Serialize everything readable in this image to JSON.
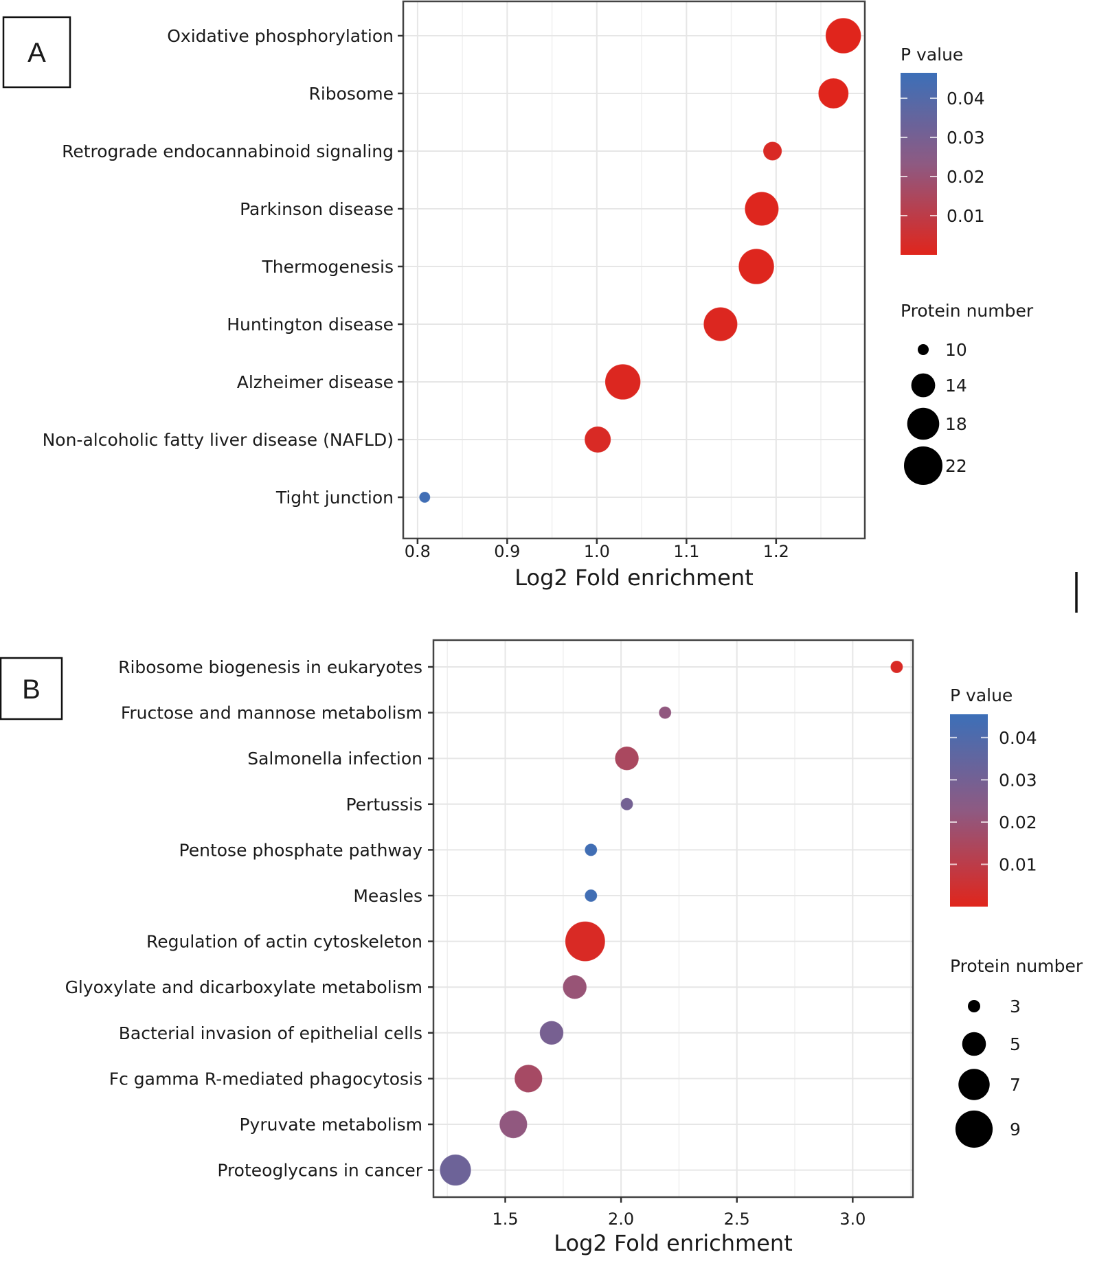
{
  "chart_data": [
    {
      "panel": "A",
      "type": "scatter",
      "subtype": "bubble",
      "xlabel": "Log2 Fold enrichment",
      "ylabel": "",
      "xlim": [
        0.784,
        1.299
      ],
      "xticks": [
        0.8,
        0.9,
        1.0,
        1.1,
        1.2
      ],
      "xtick_labels": [
        "0.8",
        "0.9",
        "1.0",
        "1.1",
        "1.2"
      ],
      "grid": true,
      "categories": [
        "Oxidative phosphorylation",
        "Ribosome",
        "Retrograde endocannabinoid signaling",
        "Parkinson disease",
        "Thermogenesis",
        "Huntington disease",
        "Alzheimer disease",
        "Non-alcoholic fatty liver disease (NAFLD)",
        "Tight junction"
      ],
      "points": [
        {
          "category": "Oxidative phosphorylation",
          "x": 1.275,
          "size": 20,
          "p": 0.0001
        },
        {
          "category": "Ribosome",
          "x": 1.264,
          "size": 17,
          "p": 0.0001
        },
        {
          "category": "Retrograde endocannabinoid signaling",
          "x": 1.196,
          "size": 12,
          "p": 0.002
        },
        {
          "category": "Parkinson disease",
          "x": 1.184,
          "size": 19,
          "p": 0.0005
        },
        {
          "category": "Thermogenesis",
          "x": 1.178,
          "size": 20,
          "p": 0.0005
        },
        {
          "category": "Huntington disease",
          "x": 1.138,
          "size": 19,
          "p": 0.001
        },
        {
          "category": "Alzheimer disease",
          "x": 1.029,
          "size": 20,
          "p": 0.001
        },
        {
          "category": "Non-alcoholic fatty liver disease (NAFLD)",
          "x": 1.001,
          "size": 15,
          "p": 0.002
        },
        {
          "category": "Tight junction",
          "x": 0.808,
          "size": 10,
          "p": 0.045
        }
      ],
      "color_legend": {
        "title": "P value",
        "range": [
          0.0,
          0.0465
        ],
        "ticks": [
          0.04,
          0.03,
          0.02,
          0.01
        ],
        "tick_labels": [
          "0.04",
          "0.03",
          "0.02",
          "0.01"
        ],
        "low_color": "#e0251c",
        "high_color": "#3c6fb8"
      },
      "size_legend": {
        "title": "Protein number",
        "values": [
          10,
          14,
          18,
          22
        ],
        "labels": [
          "10",
          "14",
          "18",
          "22"
        ]
      },
      "panel_label": "A"
    },
    {
      "panel": "B",
      "type": "scatter",
      "subtype": "bubble",
      "xlabel": "Log2 Fold enrichment",
      "ylabel": "",
      "xlim": [
        1.19,
        3.26
      ],
      "xticks": [
        1.5,
        2.0,
        2.5,
        3.0
      ],
      "xtick_labels": [
        "1.5",
        "2.0",
        "2.5",
        "3.0"
      ],
      "grid": true,
      "categories": [
        "Ribosome biogenesis in eukaryotes",
        "Fructose and mannose metabolism",
        "Salmonella infection",
        "Pertussis",
        "Pentose phosphate pathway",
        "Measles",
        "Regulation of actin cytoskeleton",
        "Glyoxylate and dicarboxylate metabolism",
        "Bacterial invasion of epithelial cells",
        "Fc gamma R-mediated phagocytosis",
        "Pyruvate metabolism",
        "Proteoglycans in cancer"
      ],
      "points": [
        {
          "category": "Ribosome biogenesis in eukaryotes",
          "x": 3.19,
          "size": 3,
          "p": 0.002
        },
        {
          "category": "Fructose and mannose metabolism",
          "x": 2.19,
          "size": 3,
          "p": 0.022
        },
        {
          "category": "Salmonella infection",
          "x": 2.025,
          "size": 5,
          "p": 0.015
        },
        {
          "category": "Pertussis",
          "x": 2.025,
          "size": 3,
          "p": 0.03
        },
        {
          "category": "Pentose phosphate pathway",
          "x": 1.87,
          "size": 3,
          "p": 0.044
        },
        {
          "category": "Measles",
          "x": 1.87,
          "size": 3,
          "p": 0.044
        },
        {
          "category": "Regulation of actin cytoskeleton",
          "x": 1.845,
          "size": 10,
          "p": 0.002
        },
        {
          "category": "Glyoxylate and dicarboxylate metabolism",
          "x": 1.8,
          "size": 5,
          "p": 0.02
        },
        {
          "category": "Bacterial invasion of epithelial cells",
          "x": 1.7,
          "size": 5,
          "p": 0.029
        },
        {
          "category": "Fc gamma R-mediated phagocytosis",
          "x": 1.6,
          "size": 6,
          "p": 0.016
        },
        {
          "category": "Pyruvate metabolism",
          "x": 1.535,
          "size": 6,
          "p": 0.022
        },
        {
          "category": "Proteoglycans in cancer",
          "x": 1.285,
          "size": 7,
          "p": 0.032
        }
      ],
      "color_legend": {
        "title": "P value",
        "range": [
          0.0,
          0.0455
        ],
        "ticks": [
          0.04,
          0.03,
          0.02,
          0.01
        ],
        "tick_labels": [
          "0.04",
          "0.03",
          "0.02",
          "0.01"
        ],
        "low_color": "#e0251c",
        "high_color": "#3c6fb8"
      },
      "size_legend": {
        "title": "Protein number",
        "values": [
          3,
          5,
          7,
          9
        ],
        "labels": [
          "3",
          "5",
          "7",
          "9"
        ]
      },
      "panel_label": "B"
    }
  ]
}
